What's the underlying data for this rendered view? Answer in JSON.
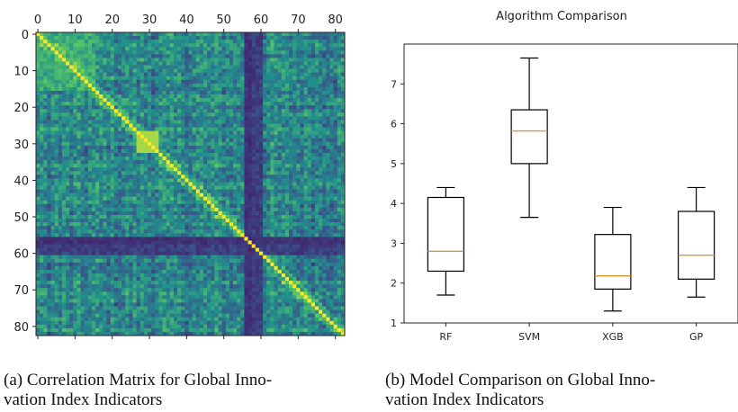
{
  "chart_data": [
    {
      "type": "heatmap",
      "title": "",
      "matrix_size": 83,
      "colormap": "viridis",
      "value_range": [
        -0.1,
        1.0
      ],
      "x_ticks": [
        0,
        10,
        20,
        30,
        40,
        50,
        60,
        70,
        80
      ],
      "y_ticks": [
        0,
        10,
        20,
        30,
        40,
        50,
        60,
        70,
        80
      ],
      "x_tick_position": "top",
      "features": {
        "diagonal_value": 1.0,
        "bright_block": {
          "rows": [
            27,
            32
          ],
          "value": 0.85
        },
        "dark_columns": [
          56,
          57,
          58,
          59,
          60
        ],
        "dark_rows": [
          56,
          57
        ],
        "upper_left_block": {
          "range": [
            0,
            15
          ],
          "value": 0.7
        }
      }
    },
    {
      "type": "box",
      "title": "Algorithm Comparison",
      "categories": [
        "RF",
        "SVM",
        "XGB",
        "GP"
      ],
      "ylim": [
        1.0,
        8.0
      ],
      "y_ticks": [
        1,
        2,
        3,
        4,
        5,
        6,
        7
      ],
      "grid": false,
      "boxes": [
        {
          "min": 1.7,
          "q1": 2.3,
          "median": 2.8,
          "q3": 4.15,
          "max": 4.4
        },
        {
          "min": 3.65,
          "q1": 5.0,
          "median": 5.82,
          "q3": 6.35,
          "max": 7.65
        },
        {
          "min": 1.3,
          "q1": 1.85,
          "median": 2.18,
          "q3": 3.22,
          "max": 3.9
        },
        {
          "min": 1.65,
          "q1": 2.1,
          "median": 2.7,
          "q3": 3.8,
          "max": 4.4
        }
      ],
      "box_color": "#000000",
      "median_color": "#d69c2f"
    }
  ],
  "captions": {
    "a_line1": "(a) Correlation Matrix for Global Inno-",
    "a_line2": "vation Index Indicators",
    "b_line1": "(b) Model Comparison on Global Inno-",
    "b_line2": "vation Index Indicators"
  }
}
